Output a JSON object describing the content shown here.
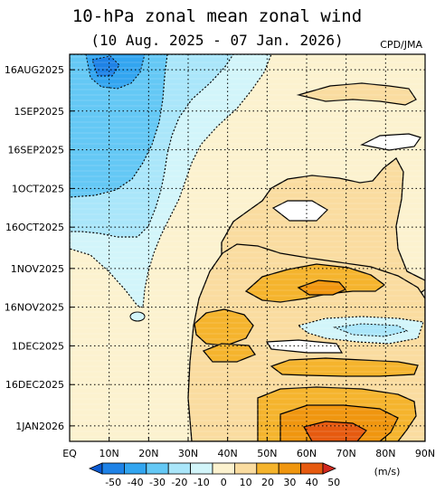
{
  "chart_data": {
    "type": "heatmap",
    "title": "10-hPa zonal mean zonal wind",
    "subtitle": "(10 Aug. 2025 - 07 Jan. 2026)",
    "source_label": "CPD/JMA",
    "x_tick_labels": [
      "EQ",
      "10N",
      "20N",
      "30N",
      "40N",
      "50N",
      "60N",
      "70N",
      "80N",
      "90N"
    ],
    "x_values_deg": [
      0,
      10,
      20,
      30,
      40,
      50,
      60,
      70,
      80,
      90
    ],
    "y_tick_labels": [
      "16AUG2025",
      "1SEP2025",
      "16SEP2025",
      "1OCT2025",
      "16OCT2025",
      "1NOV2025",
      "16NOV2025",
      "1DEC2025",
      "16DEC2025",
      "1JAN2026"
    ],
    "y_tick_days": [
      6,
      22,
      37,
      52,
      67,
      83,
      98,
      113,
      128,
      144
    ],
    "y_range_days": [
      0,
      150
    ],
    "colorbar": {
      "levels": [
        "-50",
        "-40",
        "-30",
        "-20",
        "-10",
        "0",
        "10",
        "20",
        "30",
        "40",
        "50"
      ],
      "unit": "(m/s)",
      "colors": [
        "#0a5ad2",
        "#1e82e6",
        "#32a5f0",
        "#64c8f5",
        "#aae6fa",
        "#d2f5fa",
        "#fcf2cf",
        "#fadca0",
        "#f5b42d",
        "#f0960f",
        "#e65a0f",
        "#d2281e"
      ]
    },
    "grid": "dotted"
  }
}
